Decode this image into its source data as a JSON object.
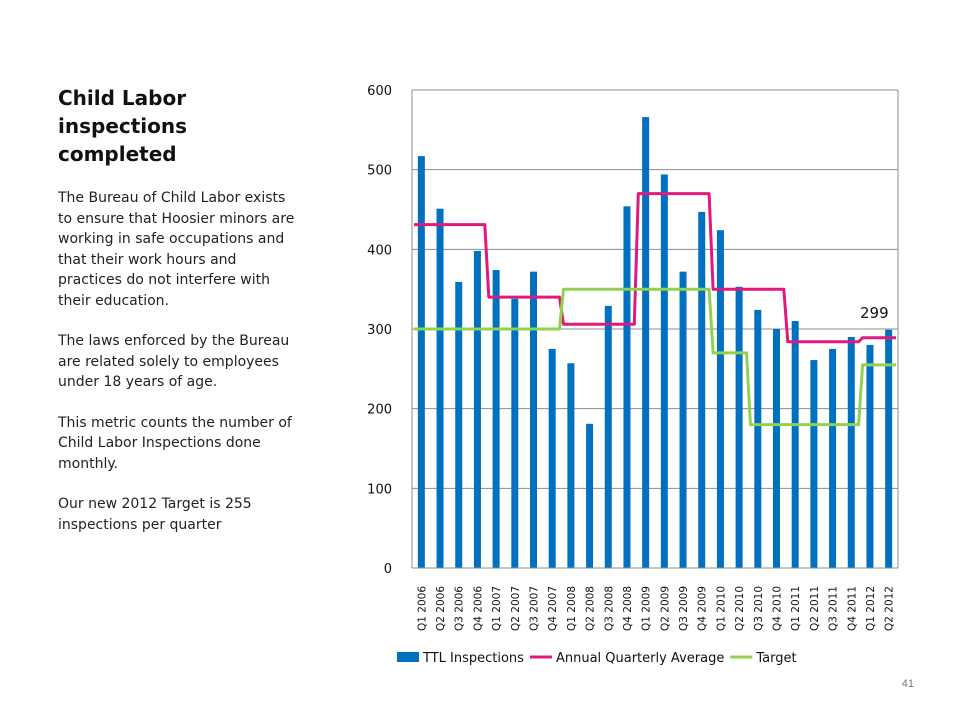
{
  "slide": {
    "title": "Child Labor inspections completed",
    "paragraphs": [
      "The Bureau of Child Labor exists to ensure that Hoosier minors are working in safe occupations and that their work hours and practices do not interfere with their education.",
      "The laws enforced by the Bureau are related solely to employees under 18 years of age.",
      "This metric counts the number of Child Labor Inspections done monthly.",
      "Our new 2012 Target is 255 inspections per quarter"
    ],
    "page_number": "41"
  },
  "chart_data": {
    "type": "bar",
    "title": "",
    "xlabel": "",
    "ylabel": "",
    "ylim": [
      0,
      600
    ],
    "yticks": [
      0,
      100,
      200,
      300,
      400,
      500,
      600
    ],
    "grid": true,
    "legend_position": "bottom",
    "categories": [
      "Q1 2006",
      "Q2 2006",
      "Q3 2006",
      "Q4 2006",
      "Q1 2007",
      "Q2 2007",
      "Q3 2007",
      "Q4 2007",
      "Q1 2008",
      "Q2 2008",
      "Q3 2008",
      "Q4 2008",
      "Q1 2009",
      "Q2 2009",
      "Q3 2009",
      "Q4 2009",
      "Q1 2010",
      "Q2 2010",
      "Q3 2010",
      "Q4 2010",
      "Q1 2011",
      "Q2 2011",
      "Q3 2011",
      "Q4 2011",
      "Q1 2012",
      "Q2 2012"
    ],
    "series": [
      {
        "name": "TTL Inspections",
        "type": "bar",
        "color": "#0070C0",
        "values": [
          517,
          451,
          359,
          398,
          374,
          338,
          372,
          275,
          257,
          181,
          329,
          454,
          566,
          494,
          372,
          447,
          424,
          353,
          324,
          300,
          310,
          261,
          275,
          290,
          280,
          299
        ]
      },
      {
        "name": "Annual Quarterly Average",
        "type": "line",
        "color": "#E0197D",
        "values": [
          431,
          431,
          431,
          431,
          340,
          340,
          340,
          340,
          306,
          306,
          306,
          306,
          470,
          470,
          470,
          470,
          350,
          350,
          350,
          350,
          284,
          284,
          284,
          284,
          289,
          289
        ]
      },
      {
        "name": "Target",
        "type": "line",
        "color": "#92D050",
        "values": [
          300,
          300,
          300,
          300,
          300,
          300,
          300,
          300,
          350,
          350,
          350,
          350,
          350,
          350,
          350,
          350,
          270,
          270,
          180,
          180,
          180,
          180,
          180,
          180,
          255,
          255
        ]
      }
    ],
    "annotations": [
      {
        "category": "Q2 2012",
        "series": "TTL Inspections",
        "text": "299"
      }
    ]
  }
}
